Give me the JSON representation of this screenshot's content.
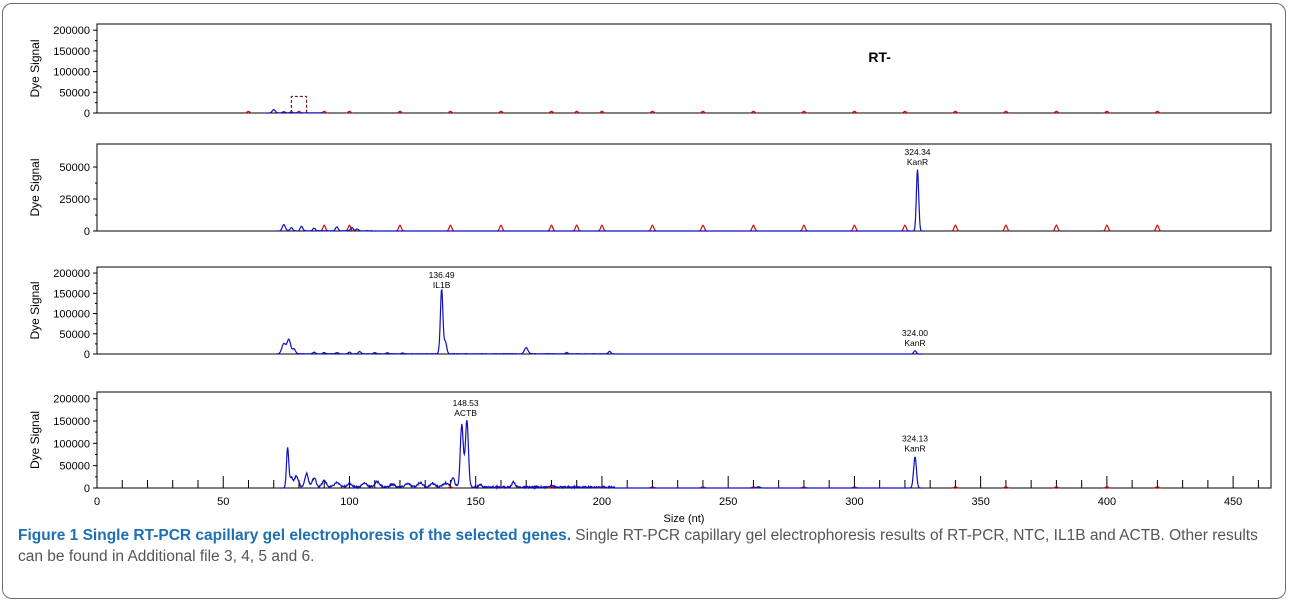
{
  "figure": {
    "caption_title": "Figure 1 Single RT-PCR capillary gel electrophoresis of the selected genes.",
    "caption_text": " Single RT-PCR capillary gel electrophoresis results of RT-PCR, NTC, IL1B and ACTB. Other results can be found in Additional file 3, 4, 5 and 6."
  },
  "colors": {
    "signal": "#1010c0",
    "ladder": "#d01010",
    "axis": "#000000"
  },
  "chart_data": [
    {
      "type": "line",
      "panel_label": "RT-",
      "ylabel": "Dye Signal",
      "yticks": [
        0,
        50000,
        100000,
        150000,
        200000
      ],
      "ylim": [
        0,
        215000
      ],
      "xlim": [
        0,
        465
      ],
      "ladder_sizes": [
        60,
        80,
        90,
        100,
        120,
        140,
        160,
        180,
        190,
        200,
        220,
        240,
        260,
        280,
        300,
        320,
        340,
        360,
        380,
        400,
        420
      ],
      "ladder_height": 4000,
      "signal_peaks": [
        [
          70,
          8000,
          0.6
        ],
        [
          74,
          3000,
          0.5
        ],
        [
          77,
          2500,
          0.5
        ]
      ],
      "baseline": 500,
      "annotations": []
    },
    {
      "type": "line",
      "ylabel": "Dye Signal",
      "yticks": [
        0,
        25000,
        50000
      ],
      "ylim": [
        0,
        68000
      ],
      "xlim": [
        0,
        465
      ],
      "ladder_sizes": [
        90,
        100,
        120,
        140,
        160,
        180,
        190,
        200,
        220,
        240,
        260,
        280,
        300,
        320,
        340,
        360,
        380,
        400,
        420
      ],
      "ladder_height": 4500,
      "signal_peaks": [
        [
          74,
          5000,
          0.6
        ],
        [
          77,
          2500,
          0.5
        ],
        [
          81,
          3500,
          0.5
        ],
        [
          86,
          2000,
          0.5
        ],
        [
          95,
          3000,
          0.5
        ],
        [
          101,
          2500,
          0.5
        ],
        [
          103,
          1500,
          0.5
        ],
        [
          325,
          48000,
          0.45
        ]
      ],
      "baseline": 300,
      "annotations": [
        {
          "x": 325,
          "value": "324.34",
          "label": "KanR"
        }
      ]
    },
    {
      "type": "line",
      "ylabel": "Dye Signal",
      "yticks": [
        0,
        50000,
        100000,
        150000,
        200000
      ],
      "ylim": [
        0,
        215000
      ],
      "xlim": [
        0,
        465
      ],
      "ladder_sizes": [],
      "ladder_height": 0,
      "signal_peaks": [
        [
          74,
          25000,
          0.8
        ],
        [
          76,
          35000,
          0.7
        ],
        [
          78,
          12000,
          0.6
        ],
        [
          86,
          4000,
          0.5
        ],
        [
          90,
          3000,
          0.5
        ],
        [
          95,
          3000,
          0.5
        ],
        [
          100,
          4000,
          0.5
        ],
        [
          104,
          6000,
          0.5
        ],
        [
          110,
          3000,
          0.5
        ],
        [
          115,
          2500,
          0.5
        ],
        [
          121,
          2000,
          0.5
        ],
        [
          136.5,
          160000,
          0.5
        ],
        [
          138,
          30000,
          0.5
        ],
        [
          170,
          15000,
          0.7
        ],
        [
          186,
          3000,
          0.5
        ],
        [
          203,
          6000,
          0.5
        ],
        [
          324,
          8000,
          0.5
        ]
      ],
      "baseline": 1000,
      "annotations": [
        {
          "x": 136.5,
          "value": "136.49",
          "label": "IL1B"
        },
        {
          "x": 324,
          "value": "324.00",
          "label": "KanR"
        }
      ]
    },
    {
      "type": "line",
      "ylabel": "Dye Signal",
      "yticks": [
        0,
        50000,
        100000,
        150000,
        200000
      ],
      "ylim": [
        0,
        215000
      ],
      "xlim": [
        0,
        465
      ],
      "xlabel": "Size (nt)",
      "xticks": [
        0,
        50,
        100,
        150,
        200,
        250,
        300,
        350,
        400,
        450
      ],
      "ladder_sizes": [
        140,
        160,
        180,
        200,
        220,
        240,
        260,
        280,
        300,
        340,
        360,
        380,
        400,
        420
      ],
      "ladder_height": 3000,
      "signal_peaks": [
        [
          75.5,
          90000,
          0.45
        ],
        [
          77,
          20000,
          0.6
        ],
        [
          79,
          25000,
          0.8
        ],
        [
          83,
          30000,
          0.7
        ],
        [
          86,
          20000,
          0.8
        ],
        [
          90,
          15000,
          0.8
        ],
        [
          95,
          10000,
          1
        ],
        [
          100,
          8000,
          1
        ],
        [
          106,
          9000,
          1
        ],
        [
          111,
          12000,
          1
        ],
        [
          117,
          6000,
          1
        ],
        [
          123,
          8000,
          1
        ],
        [
          128,
          10000,
          1
        ],
        [
          133,
          8000,
          1
        ],
        [
          138,
          9000,
          1
        ],
        [
          141,
          20000,
          0.7
        ],
        [
          144.5,
          140000,
          0.6
        ],
        [
          146.5,
          150000,
          0.6
        ],
        [
          152,
          6000,
          0.6
        ],
        [
          165,
          12000,
          0.6
        ],
        [
          180,
          5000,
          0.6
        ],
        [
          262,
          3000,
          0.6
        ],
        [
          324,
          70000,
          0.55
        ]
      ],
      "baseline": 4000,
      "annotations": [
        {
          "x": 146,
          "value": "148.53",
          "label": "ACTB"
        },
        {
          "x": 324,
          "value": "324.13",
          "label": "KanR"
        }
      ]
    }
  ]
}
